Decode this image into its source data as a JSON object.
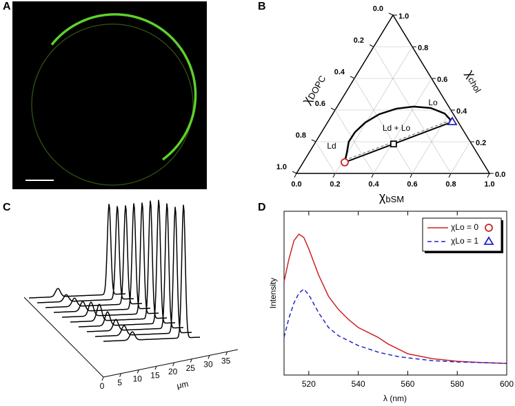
{
  "chart_data": [
    {
      "type": "image",
      "label": "A"
    },
    {
      "type": "ternary",
      "label": "B",
      "axes": {
        "bottom": {
          "title": {
            "symbol": "χ",
            "sub": "bSM"
          },
          "ticks": [
            {
              "value": 0,
              "label": "0.0"
            },
            0.2,
            0.4,
            0.6,
            0.8,
            {
              "value": 1,
              "label": "1.0"
            }
          ]
        },
        "right": {
          "title": {
            "symbol": "χ",
            "sub": "chol"
          },
          "ticks": [
            {
              "value": 0,
              "label": "0.0"
            },
            0.2,
            0.4,
            0.6,
            0.8,
            {
              "value": 1,
              "label": "1.0"
            }
          ]
        },
        "left": {
          "title": {
            "symbol": "χ",
            "sub": "DOPC"
          },
          "ticks": [
            {
              "value": 0,
              "label": "0.0"
            },
            0.2,
            0.4,
            0.6,
            0.8,
            {
              "value": 1,
              "label": "1.0"
            }
          ]
        }
      },
      "grid": true,
      "boundary": {
        "bSM": [
          0.215,
          0.196,
          0.171,
          0.173,
          0.196,
          0.242,
          0.313,
          0.396,
          0.49,
          0.579,
          0.644
        ],
        "chol": [
          0.07,
          0.13,
          0.2,
          0.261,
          0.322,
          0.374,
          0.409,
          0.422,
          0.413,
          0.378,
          0.326
        ],
        "color": "#000000"
      },
      "tie_line": {
        "bSM": [
          0.215,
          0.41,
          0.644
        ],
        "chol": [
          0.07,
          0.186,
          0.326
        ],
        "markers": [
          "circle",
          "square",
          "triangle"
        ],
        "marker_colors": [
          "#cc2222",
          "#000000",
          "#2222bb"
        ]
      },
      "annotations": [
        "Lo",
        "Ld + Lo",
        "Ld"
      ]
    },
    {
      "type": "waterfall",
      "label": "C",
      "xlabel": "μm",
      "xlim": [
        0,
        38
      ],
      "xticks": [
        0,
        5,
        10,
        15,
        20,
        25,
        30,
        35
      ],
      "dim_peak": [
        0.06,
        0.05,
        0.06,
        0.07,
        0.1,
        0.12,
        0.1,
        0.08,
        0.07,
        0.06
      ],
      "bright_peak": [
        0.66,
        0.68,
        0.72,
        0.77,
        0.81,
        0.86,
        0.9,
        0.91,
        0.92,
        0.97
      ],
      "color": "#000000"
    },
    {
      "type": "line",
      "label": "D",
      "xlabel": "λ (nm)",
      "ylabel": "Intensity",
      "x": [
        510,
        512,
        514,
        516,
        518,
        520,
        524,
        528,
        532,
        536,
        540,
        544,
        548,
        552,
        556,
        560,
        570,
        580,
        590,
        600
      ],
      "xlim": [
        510,
        600
      ],
      "xticks": [
        520,
        540,
        560,
        580,
        600
      ],
      "ylim": [
        0,
        1
      ],
      "series": [
        {
          "name": "χLo = 0",
          "color": "#cc2222",
          "dash": "solid",
          "marker": "circle",
          "values": [
            0.57,
            0.71,
            0.82,
            0.86,
            0.84,
            0.77,
            0.61,
            0.48,
            0.4,
            0.34,
            0.29,
            0.26,
            0.23,
            0.19,
            0.16,
            0.13,
            0.1,
            0.084,
            0.076,
            0.071
          ]
        },
        {
          "name": "χLo = 1",
          "color": "#2222cc",
          "dash": "dashed",
          "marker": "triangle",
          "values": [
            0.23,
            0.35,
            0.44,
            0.5,
            0.525,
            0.49,
            0.38,
            0.29,
            0.24,
            0.21,
            0.18,
            0.16,
            0.14,
            0.126,
            0.113,
            0.105,
            0.088,
            0.08,
            0.076,
            0.071
          ]
        }
      ],
      "legend": "upper right"
    }
  ]
}
